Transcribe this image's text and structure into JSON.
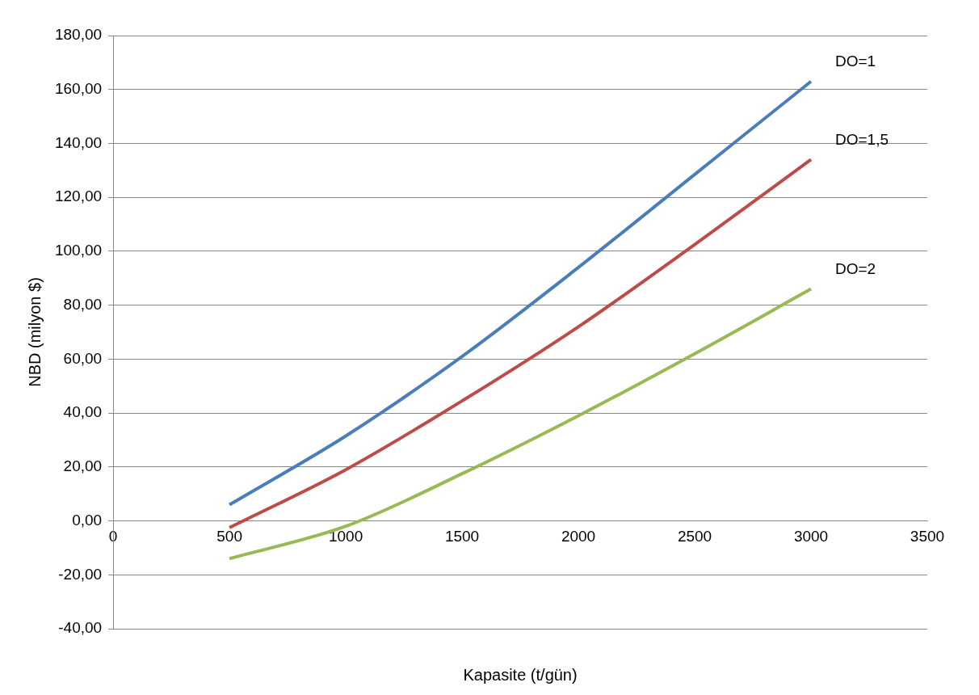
{
  "chart_data": {
    "type": "line",
    "xlabel": "Kapasite (t/gün)",
    "ylabel": "NBD (milyon $)",
    "xlim": [
      0,
      3500
    ],
    "xticks": [
      0,
      500,
      1000,
      1500,
      2000,
      2500,
      3000,
      3500
    ],
    "ylim": [
      -40,
      180
    ],
    "yticks": [
      {
        "value": -40,
        "label": "-40,00"
      },
      {
        "value": -20,
        "label": "-20,00"
      },
      {
        "value": 0,
        "label": "0,00"
      },
      {
        "value": 20,
        "label": "20,00"
      },
      {
        "value": 40,
        "label": "40,00"
      },
      {
        "value": 60,
        "label": "60,00"
      },
      {
        "value": 80,
        "label": "80,00"
      },
      {
        "value": 100,
        "label": "100,00"
      },
      {
        "value": 120,
        "label": "120,00"
      },
      {
        "value": 140,
        "label": "140,00"
      },
      {
        "value": 160,
        "label": "160,00"
      },
      {
        "value": 180,
        "label": "180,00"
      }
    ],
    "x": [
      500,
      1000,
      1500,
      2000,
      2500,
      3000
    ],
    "series": [
      {
        "name": "DO=1",
        "color": "#4a7ebb",
        "values": [
          6,
          31.5,
          61,
          94,
          128.5,
          163
        ]
      },
      {
        "name": "DO=1,5",
        "color": "#be4b48",
        "values": [
          -2.5,
          19,
          44.5,
          72,
          102.5,
          134
        ]
      },
      {
        "name": "DO=2",
        "color": "#98b954",
        "values": [
          -14,
          -2,
          17.5,
          39,
          62,
          86
        ]
      }
    ],
    "grid": "y",
    "legend": false,
    "marker": "none",
    "line_style": "solid"
  }
}
